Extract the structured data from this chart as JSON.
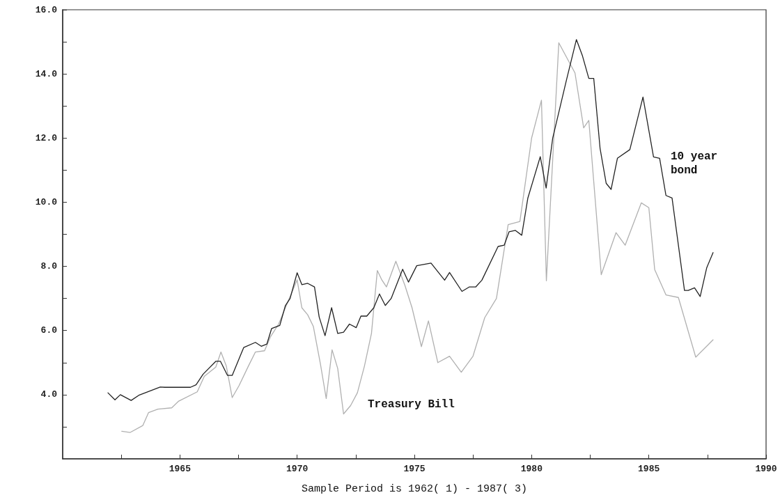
{
  "chart_data": {
    "type": "line",
    "xlabel": "Sample Period is 1962( 1) - 1987( 3)",
    "xlim": [
      1960,
      1990
    ],
    "xticks": [
      {
        "value": 1962.5,
        "label": null
      },
      1965,
      {
        "value": 1967.5,
        "label": null
      },
      1970,
      {
        "value": 1972.5,
        "label": null
      },
      1975,
      {
        "value": 1977.5,
        "label": null
      },
      1980,
      {
        "value": 1982.5,
        "label": null
      },
      1985,
      {
        "value": 1987.5,
        "label": null
      },
      1990
    ],
    "ylim": [
      2,
      16
    ],
    "yticks": [
      {
        "value": 3,
        "label": null
      },
      {
        "value": 4,
        "label": "4.0"
      },
      {
        "value": 5,
        "label": null
      },
      {
        "value": 6,
        "label": "6.0"
      },
      {
        "value": 7,
        "label": null
      },
      {
        "value": 8,
        "label": "8.0"
      },
      {
        "value": 9,
        "label": null
      },
      {
        "value": 10,
        "label": "10.0"
      },
      {
        "value": 11,
        "label": null
      },
      {
        "value": 12,
        "label": "12.0"
      },
      {
        "value": 13,
        "label": null
      },
      {
        "value": 14,
        "label": "14.0"
      },
      {
        "value": 15,
        "label": null
      },
      {
        "value": 16,
        "label": "16.0"
      }
    ],
    "grid": false,
    "marker": "none",
    "line_style": "solid",
    "series": [
      {
        "color": "#b0b0b0",
        "x": [
          1962.52,
          1962.87,
          1963.42,
          1963.66,
          1964.06,
          1964.65,
          1964.95,
          1965.74,
          1966.04,
          1966.53,
          1966.75,
          1966.98,
          1967.23,
          1967.52,
          1967.92,
          1968.22,
          1968.61,
          1968.86,
          1969.21,
          1969.6,
          1970.0,
          1970.2,
          1970.45,
          1970.69,
          1970.99,
          1971.24,
          1971.49,
          1971.73,
          1971.98,
          1972.28,
          1972.57,
          1972.87,
          1973.17,
          1973.42,
          1973.61,
          1973.81,
          1974.21,
          1974.6,
          1974.9,
          1975.3,
          1975.6,
          1976.0,
          1976.5,
          1977.0,
          1977.5,
          1978.0,
          1978.5,
          1979.0,
          1979.5,
          1980.0,
          1980.42,
          1980.63,
          1981.16,
          1981.85,
          1982.22,
          1982.44,
          1982.97,
          1983.6,
          1983.99,
          1984.68,
          1985.0,
          1985.25,
          1985.73,
          1986.26,
          1987.0,
          1987.74
        ],
        "values": [
          2.86,
          2.82,
          3.04,
          3.44,
          3.55,
          3.59,
          3.8,
          4.09,
          4.57,
          4.86,
          5.33,
          4.89,
          3.91,
          4.28,
          4.89,
          5.33,
          5.37,
          5.8,
          6.2,
          6.89,
          7.58,
          6.71,
          6.49,
          6.13,
          4.97,
          3.88,
          5.4,
          4.82,
          3.4,
          3.66,
          4.06,
          4.89,
          5.91,
          7.87,
          7.58,
          7.36,
          8.16,
          7.4,
          6.71,
          5.5,
          6.3,
          5.0,
          5.2,
          4.7,
          5.2,
          6.4,
          7.0,
          9.3,
          9.4,
          12.0,
          13.18,
          7.55,
          14.97,
          14.03,
          12.32,
          12.55,
          7.74,
          9.05,
          8.66,
          9.98,
          9.83,
          7.9,
          7.11,
          7.03,
          5.17,
          5.71
        ]
      },
      {
        "color": "#222222",
        "x": [
          1961.93,
          1962.23,
          1962.46,
          1962.92,
          1963.27,
          1964.16,
          1964.36,
          1965.45,
          1965.69,
          1965.99,
          1966.53,
          1966.73,
          1967.03,
          1967.23,
          1967.72,
          1968.22,
          1968.47,
          1968.71,
          1968.91,
          1969.26,
          1969.5,
          1969.7,
          1970.0,
          1970.2,
          1970.45,
          1970.74,
          1970.94,
          1971.19,
          1971.47,
          1971.73,
          1971.98,
          1972.23,
          1972.52,
          1972.72,
          1972.97,
          1973.27,
          1973.51,
          1973.76,
          1974.01,
          1974.5,
          1974.75,
          1975.1,
          1975.71,
          1976.29,
          1976.5,
          1977.03,
          1977.35,
          1977.62,
          1977.88,
          1978.57,
          1978.83,
          1979.04,
          1979.31,
          1979.58,
          1979.84,
          1980.37,
          1980.62,
          1980.9,
          1981.48,
          1981.91,
          1982.17,
          1982.44,
          1982.65,
          1982.92,
          1983.18,
          1983.39,
          1983.66,
          1984.19,
          1984.75,
          1985.2,
          1985.46,
          1985.73,
          1985.99,
          1986.52,
          1986.68,
          1986.95,
          1987.19,
          1987.47,
          1987.74
        ],
        "values": [
          4.06,
          3.84,
          4.0,
          3.82,
          3.99,
          4.24,
          4.23,
          4.23,
          4.31,
          4.64,
          5.04,
          5.04,
          4.6,
          4.6,
          5.47,
          5.63,
          5.51,
          5.58,
          6.06,
          6.16,
          6.78,
          7.0,
          7.8,
          7.43,
          7.47,
          7.36,
          6.42,
          5.84,
          6.71,
          5.91,
          5.95,
          6.2,
          6.09,
          6.45,
          6.45,
          6.71,
          7.14,
          6.78,
          7.0,
          7.91,
          7.51,
          8.02,
          8.1,
          7.57,
          7.81,
          7.22,
          7.36,
          7.36,
          7.57,
          8.62,
          8.66,
          9.08,
          9.12,
          8.97,
          10.13,
          11.42,
          10.44,
          12.0,
          13.79,
          15.07,
          14.56,
          13.86,
          13.86,
          11.68,
          10.59,
          10.4,
          11.37,
          11.64,
          13.28,
          11.41,
          11.37,
          10.21,
          10.13,
          7.25,
          7.25,
          7.33,
          7.06,
          7.96,
          8.43
        ]
      }
    ],
    "annotations": [
      "10 year\nbond",
      "Treasury Bill"
    ]
  }
}
